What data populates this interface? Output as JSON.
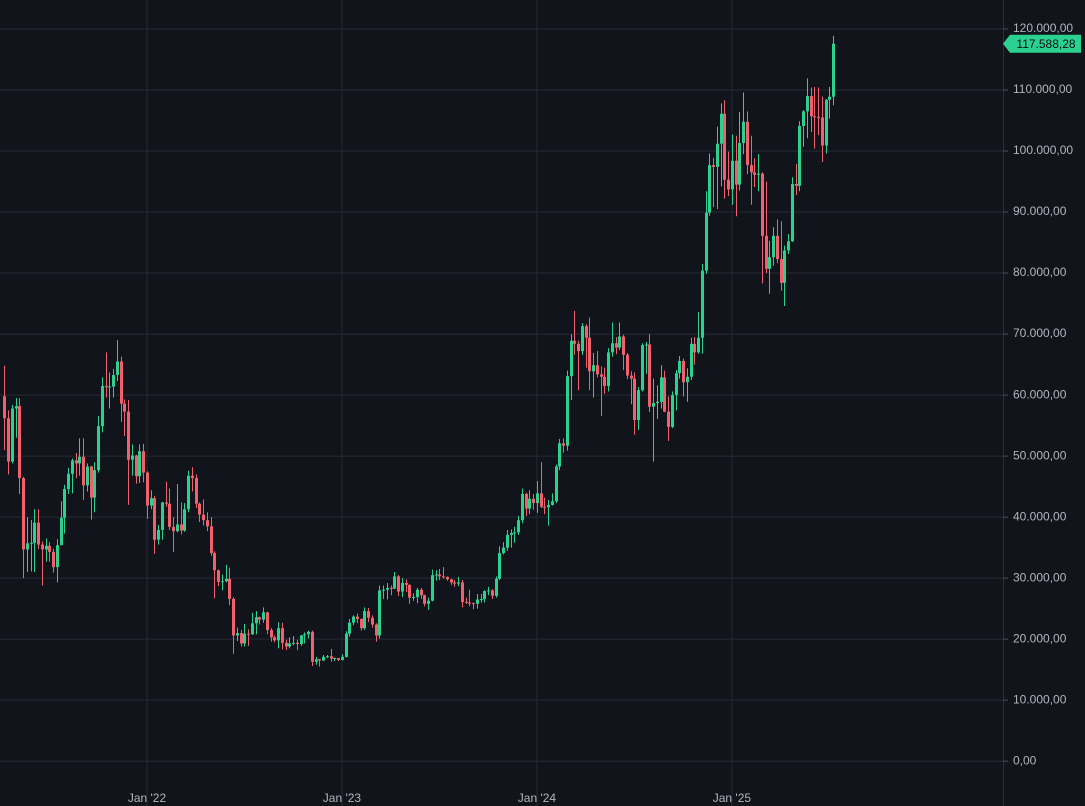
{
  "chart_data": {
    "type": "candlestick",
    "series": [
      {
        "up_color": "#2bd18f",
        "down_color": "#f0616d",
        "open": [
          59800,
          56200,
          49100,
          57800,
          58200,
          46400,
          34700,
          35700,
          35800,
          39100,
          35500,
          34700,
          35300,
          34300,
          31800,
          35400,
          39900,
          44600,
          47100,
          49300,
          48800,
          49900,
          45200,
          48300,
          43200,
          47700,
          54900,
          61500,
          61300,
          61400,
          63300,
          65500,
          58600,
          57300,
          49400,
          50100,
          46700,
          50800,
          47300,
          41900,
          43100,
          36300,
          37900,
          42400,
          42200,
          38400,
          37700,
          38800,
          37800,
          41300,
          46800,
          46400,
          42200,
          40400,
          39500,
          38500,
          34100,
          31300,
          29400,
          29500,
          29900,
          26600,
          20600,
          21000,
          19300,
          20900,
          20800,
          22600,
          23600,
          23200,
          24400,
          21500,
          20300,
          19800,
          21800,
          19400,
          18800,
          19300,
          19400,
          19200,
          20600,
          20800,
          21200,
          16300,
          16700,
          16500,
          17100,
          17200,
          16800,
          16900,
          16600,
          17100,
          20900,
          22700,
          23700,
          23300,
          21800,
          24600,
          23500,
          22400,
          20600,
          28000,
          28100,
          28400,
          28300,
          30300,
          27800,
          29200,
          28900,
          26800,
          26900,
          28100,
          27200,
          25800,
          26300,
          30500,
          30600,
          30300,
          30200,
          29800,
          29300,
          29100,
          29300,
          26100,
          26000,
          25900,
          25800,
          26500,
          26600,
          27900,
          28000,
          27100,
          29900,
          34100,
          35000,
          37100,
          37400,
          37500,
          39500,
          43800,
          41400,
          43000,
          42300,
          43900,
          41700,
          41600,
          42000,
          42600,
          48300,
          52100,
          51700,
          63100,
          68900,
          68400,
          67200,
          71300,
          69400,
          63900,
          64900,
          63400,
          63000,
          61500,
          67000,
          68500,
          67800,
          69600,
          66600,
          63200,
          62700,
          55900,
          60800,
          68200,
          68300,
          58100,
          58700,
          58900,
          62900,
          57300,
          54800,
          60000,
          63600,
          65600,
          62100,
          63000,
          68400,
          67000,
          69400,
          80400,
          89900,
          97700,
          97400,
          101200,
          106100,
          95300,
          93700,
          98400,
          94500,
          101300,
          104800,
          97700,
          96500,
          96100,
          96300,
          86100,
          80700,
          82600,
          86100,
          82300,
          78400,
          83700,
          85200,
          94600,
          94300,
          104100,
          106500,
          109000,
          105700,
          105600,
          105500,
          100900,
          108400,
          108900
        ],
        "high": [
          64800,
          57500,
          58400,
          59500,
          59500,
          46600,
          40000,
          39500,
          41300,
          41300,
          36000,
          36500,
          35900,
          34800,
          36400,
          42600,
          45300,
          48100,
          49600,
          50500,
          52900,
          52900,
          48800,
          48400,
          49000,
          56600,
          62900,
          67000,
          63700,
          64300,
          69000,
          66300,
          59300,
          59200,
          51900,
          50200,
          51900,
          52000,
          47500,
          44400,
          43500,
          38700,
          42500,
          45800,
          44700,
          40000,
          45400,
          42400,
          42300,
          47600,
          48200,
          47000,
          42400,
          42900,
          40800,
          40000,
          34400,
          31400,
          30600,
          32200,
          31700,
          26900,
          21900,
          21500,
          22500,
          21600,
          24300,
          24600,
          23700,
          25200,
          24500,
          21800,
          20600,
          22800,
          22700,
          19900,
          20300,
          20500,
          19900,
          20700,
          21100,
          21400,
          21400,
          17100,
          16800,
          17400,
          17400,
          18400,
          17000,
          16900,
          17500,
          21300,
          23300,
          23900,
          24200,
          23400,
          25200,
          25100,
          23900,
          22600,
          28800,
          28800,
          29200,
          28800,
          31000,
          30500,
          30000,
          29800,
          29000,
          27500,
          28400,
          28400,
          27300,
          26800,
          31400,
          31300,
          31500,
          31800,
          30300,
          29900,
          29700,
          30200,
          29700,
          26800,
          28100,
          26000,
          27400,
          27400,
          28000,
          28600,
          28200,
          30300,
          35200,
          35900,
          37900,
          38000,
          38400,
          40200,
          44700,
          44000,
          44400,
          43800,
          45900,
          49000,
          43200,
          42800,
          43900,
          48600,
          52800,
          52900,
          64000,
          70000,
          73800,
          68900,
          71800,
          71600,
          72700,
          66900,
          67200,
          64700,
          64500,
          67700,
          71900,
          69500,
          71900,
          69900,
          66900,
          63900,
          63700,
          61300,
          68500,
          68700,
          70000,
          62700,
          61600,
          64900,
          64000,
          59800,
          60600,
          64100,
          66400,
          66000,
          64400,
          69400,
          69500,
          73600,
          81500,
          93400,
          99600,
          98900,
          104000,
          107800,
          108300,
          99900,
          102700,
          102500,
          106400,
          109600,
          106500,
          102500,
          98800,
          99500,
          96500,
          95000,
          85300,
          87500,
          88800,
          88500,
          84500,
          86400,
          95700,
          97900,
          104900,
          106700,
          111900,
          110400,
          110500,
          110400,
          108900,
          108500,
          110500,
          118900
        ],
        "low": [
          51000,
          47000,
          48800,
          53000,
          43800,
          30000,
          31000,
          31100,
          31000,
          34800,
          28800,
          32700,
          32700,
          30900,
          29300,
          36400,
          37300,
          43800,
          43900,
          46400,
          46800,
          42800,
          44200,
          39600,
          40800,
          47300,
          53900,
          59600,
          57800,
          59600,
          62300,
          55600,
          53300,
          42000,
          46800,
          45500,
          45600,
          45700,
          39700,
          41300,
          34000,
          35500,
          36300,
          41700,
          37900,
          34300,
          37500,
          37200,
          37600,
          40800,
          44200,
          41500,
          39200,
          38600,
          37700,
          33700,
          26700,
          28700,
          28000,
          29300,
          25600,
          17600,
          19700,
          18800,
          18800,
          18900,
          20700,
          20800,
          22400,
          22700,
          20800,
          19600,
          19500,
          18500,
          18300,
          18200,
          18500,
          19000,
          18200,
          18900,
          19300,
          20100,
          15600,
          15800,
          15500,
          16400,
          16900,
          16300,
          16400,
          16400,
          16500,
          17000,
          20400,
          22300,
          22600,
          21400,
          21500,
          22800,
          21900,
          19600,
          20100,
          26600,
          26500,
          27200,
          28200,
          27100,
          26900,
          27700,
          25800,
          26300,
          25900,
          26600,
          25400,
          24800,
          26200,
          29600,
          29700,
          29900,
          29600,
          28900,
          28600,
          28700,
          25200,
          25800,
          25400,
          24900,
          25000,
          26000,
          26000,
          27200,
          26600,
          26800,
          29700,
          33900,
          34500,
          35000,
          35800,
          37100,
          39000,
          40200,
          40500,
          41200,
          40700,
          41500,
          40500,
          38600,
          41900,
          42300,
          47700,
          50600,
          50900,
          59200,
          66600,
          60800,
          66600,
          64500,
          60800,
          59600,
          62900,
          56600,
          60200,
          60600,
          66300,
          66700,
          67400,
          64100,
          62600,
          58500,
          53500,
          54300,
          60600,
          63500,
          57200,
          49100,
          56100,
          57800,
          57200,
          52500,
          54600,
          57500,
          62700,
          59800,
          58900,
          62500,
          65000,
          66800,
          66800,
          79900,
          89400,
          90800,
          90500,
          94200,
          92200,
          92600,
          91200,
          89300,
          93500,
          99500,
          96200,
          91200,
          94100,
          93400,
          78300,
          80000,
          76600,
          81200,
          81600,
          77100,
          74600,
          83100,
          85100,
          92800,
          93400,
          100700,
          102100,
          103100,
          100400,
          102600,
          98200,
          99600,
          105300,
          107500
        ],
        "close": [
          56200,
          49100,
          57800,
          58200,
          46400,
          34700,
          35700,
          35800,
          39100,
          35500,
          34700,
          35300,
          34300,
          31800,
          35400,
          39900,
          44600,
          47100,
          49300,
          48800,
          49900,
          45200,
          48300,
          43200,
          47700,
          54900,
          61500,
          61300,
          61400,
          63300,
          65500,
          58600,
          57300,
          49400,
          50100,
          46700,
          50800,
          47300,
          41900,
          43100,
          36300,
          37900,
          42400,
          42200,
          38400,
          37700,
          38800,
          37800,
          41300,
          46800,
          46400,
          42200,
          40400,
          39500,
          38500,
          34100,
          31300,
          29400,
          29500,
          29900,
          26600,
          20600,
          21000,
          19300,
          20900,
          20800,
          22600,
          23600,
          23200,
          24400,
          21500,
          20300,
          19800,
          21800,
          19400,
          18800,
          19300,
          19400,
          19200,
          20600,
          20800,
          21200,
          16300,
          16700,
          16500,
          17100,
          17200,
          16800,
          16900,
          16600,
          17100,
          20900,
          22700,
          23700,
          23300,
          21800,
          24600,
          23500,
          22400,
          20600,
          28000,
          28100,
          28400,
          28300,
          30300,
          27800,
          29200,
          28900,
          26800,
          26900,
          28100,
          27200,
          25800,
          26300,
          30500,
          30600,
          30300,
          30200,
          29800,
          29300,
          29100,
          29300,
          26100,
          26000,
          25900,
          25800,
          26500,
          26600,
          27900,
          28000,
          27100,
          29900,
          34100,
          35000,
          37100,
          37400,
          37500,
          39500,
          43800,
          41400,
          43000,
          42300,
          43900,
          41700,
          41600,
          42000,
          42600,
          48300,
          52100,
          51700,
          63100,
          68900,
          68400,
          67200,
          71300,
          69400,
          63900,
          64900,
          63400,
          63000,
          61500,
          67000,
          68500,
          67800,
          69600,
          66600,
          63200,
          62700,
          55900,
          60800,
          68200,
          68300,
          58100,
          58700,
          58900,
          62900,
          57300,
          54800,
          60000,
          63600,
          65600,
          62100,
          63000,
          68400,
          67000,
          69400,
          80400,
          89900,
          97700,
          97400,
          101200,
          106100,
          95300,
          93700,
          98400,
          94500,
          101300,
          104800,
          97700,
          96500,
          96100,
          96300,
          86100,
          80700,
          82600,
          86100,
          82300,
          78400,
          83700,
          85200,
          94600,
          94300,
          104100,
          106500,
          109000,
          105700,
          105600,
          105500,
          100900,
          108400,
          108900,
          117588.28
        ]
      }
    ],
    "last_price_label": "117.588,28",
    "xlim": [
      -1.2,
      266.3
    ],
    "xticks": [
      {
        "value": 38,
        "label": "Jan '22"
      },
      {
        "value": 90,
        "label": "Jan '23"
      },
      {
        "value": 142,
        "label": "Jan '24"
      },
      {
        "value": 194,
        "label": "Jan '25"
      }
    ],
    "ylim": [
      -3900,
      124750
    ],
    "yticks": [
      {
        "value": 0,
        "label": "0,00"
      },
      {
        "value": 10000,
        "label": "10.000,00"
      },
      {
        "value": 20000,
        "label": "20.000,00"
      },
      {
        "value": 30000,
        "label": "30.000,00"
      },
      {
        "value": 40000,
        "label": "40.000,00"
      },
      {
        "value": 50000,
        "label": "50.000,00"
      },
      {
        "value": 60000,
        "label": "60.000,00"
      },
      {
        "value": 70000,
        "label": "70.000,00"
      },
      {
        "value": 80000,
        "label": "80.000,00"
      },
      {
        "value": 90000,
        "label": "90.000,00"
      },
      {
        "value": 100000,
        "label": "100.000,00"
      },
      {
        "value": 110000,
        "label": "110.000,00"
      },
      {
        "value": 120000,
        "label": "120.000,00"
      }
    ],
    "grid": true
  }
}
